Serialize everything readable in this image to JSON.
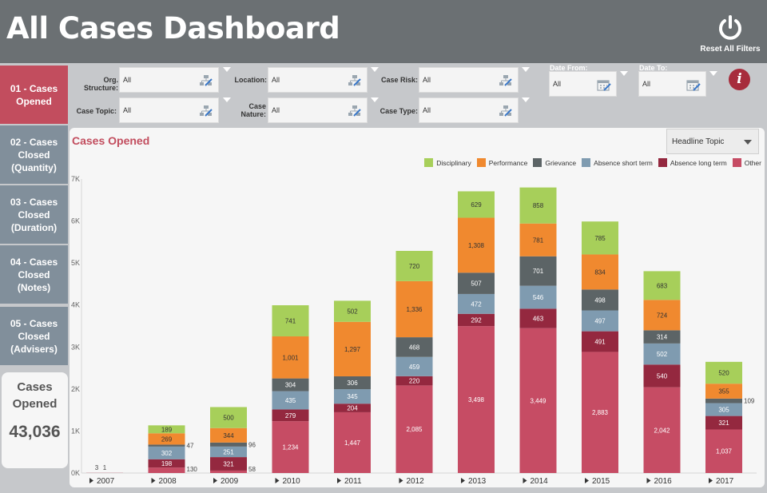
{
  "header": {
    "title": "All Cases Dashboard",
    "reset_label": "Reset All Filters"
  },
  "sidebar": {
    "items": [
      {
        "label": "01 - Cases Opened",
        "active": true
      },
      {
        "label": "02 - Cases Closed (Quantity)",
        "active": false
      },
      {
        "label": "03 - Cases Closed (Duration)",
        "active": false
      },
      {
        "label": "04 - Cases Closed (Notes)",
        "active": false
      },
      {
        "label": "05 - Cases Closed (Advisers)",
        "active": false
      }
    ],
    "kpi": {
      "label": "Cases Opened",
      "value": "43,036"
    }
  },
  "filters": {
    "org_structure": {
      "label": "Org. Structure:",
      "value": "All"
    },
    "location": {
      "label": "Location:",
      "value": "All"
    },
    "case_risk": {
      "label": "Case Risk:",
      "value": "All"
    },
    "case_topic": {
      "label": "Case Topic:",
      "value": "All"
    },
    "case_nature": {
      "label": "Case Nature:",
      "value": "All"
    },
    "case_type": {
      "label": "Case Type:",
      "value": "All"
    },
    "date_from": {
      "label": "Date From:",
      "value": "All"
    },
    "date_to": {
      "label": "Date To:",
      "value": "All"
    },
    "info_glyph": "i"
  },
  "panel": {
    "title": "Cases Opened",
    "dropdown_value": "Headline Topic"
  },
  "chart_data": {
    "type": "bar",
    "stacked": true,
    "title": "Cases Opened",
    "categories": [
      "2007",
      "2008",
      "2009",
      "2010",
      "2011",
      "2012",
      "2013",
      "2014",
      "2015",
      "2016",
      "2017"
    ],
    "series": [
      {
        "name": "Other",
        "color": "#c64c64",
        "values": [
          3,
          130,
          58,
          1234,
          1447,
          2085,
          3498,
          3449,
          2883,
          2042,
          1037
        ],
        "labels": [
          "3",
          "130",
          "58",
          "1,234",
          "1,447",
          "2,085",
          "3,498",
          "3,449",
          "2,883",
          "2,042",
          "1,037"
        ]
      },
      {
        "name": "Absence long term",
        "color": "#94283f",
        "values": [
          1,
          198,
          321,
          279,
          204,
          220,
          292,
          463,
          491,
          540,
          321
        ],
        "labels": [
          "1",
          "198",
          "321",
          "279",
          "204",
          "220",
          "292",
          "463",
          "491",
          "540",
          "321"
        ]
      },
      {
        "name": "Absence short term",
        "color": "#7f9bb0",
        "values": [
          0,
          302,
          251,
          435,
          345,
          459,
          472,
          546,
          497,
          502,
          305
        ],
        "labels": [
          "",
          "302",
          "251",
          "435",
          "345",
          "459",
          "472",
          "546",
          "497",
          "502",
          "305"
        ]
      },
      {
        "name": "Grievance",
        "color": "#5c6466",
        "values": [
          0,
          47,
          96,
          304,
          306,
          468,
          507,
          701,
          498,
          314,
          109
        ],
        "labels": [
          "",
          "47",
          "96",
          "304",
          "306",
          "468",
          "507",
          "701",
          "498",
          "314",
          "109"
        ]
      },
      {
        "name": "Performance",
        "color": "#f0892f",
        "values": [
          0,
          269,
          344,
          1001,
          1297,
          1336,
          1308,
          781,
          834,
          724,
          355
        ],
        "labels": [
          "",
          "269",
          "344",
          "1,001",
          "1,297",
          "1,336",
          "1,308",
          "781",
          "834",
          "724",
          "355"
        ]
      },
      {
        "name": "Disciplinary",
        "color": "#a7cf5a",
        "values": [
          0,
          189,
          500,
          741,
          502,
          720,
          629,
          858,
          785,
          683,
          520
        ],
        "labels": [
          "",
          "189",
          "500",
          "741",
          "502",
          "720",
          "629",
          "858",
          "785",
          "683",
          "520"
        ]
      }
    ],
    "legend_order": [
      "Disciplinary",
      "Performance",
      "Grievance",
      "Absence short term",
      "Absence long term",
      "Other"
    ],
    "y_ticks": [
      {
        "value": 0,
        "label": "0K"
      },
      {
        "value": 1000,
        "label": "1K"
      },
      {
        "value": 2000,
        "label": "2K"
      },
      {
        "value": 3000,
        "label": "3K"
      },
      {
        "value": 4000,
        "label": "4K"
      },
      {
        "value": 5000,
        "label": "5K"
      },
      {
        "value": 6000,
        "label": "6K"
      },
      {
        "value": 7000,
        "label": "7K"
      }
    ],
    "ylim": [
      0,
      7000
    ],
    "xlabel": "",
    "ylabel": "",
    "legend_position": "top-right",
    "outside_labels": {
      "2008": [
        "130",
        "47"
      ],
      "2009": [
        "58",
        "96"
      ],
      "2017": [
        "109"
      ]
    }
  }
}
